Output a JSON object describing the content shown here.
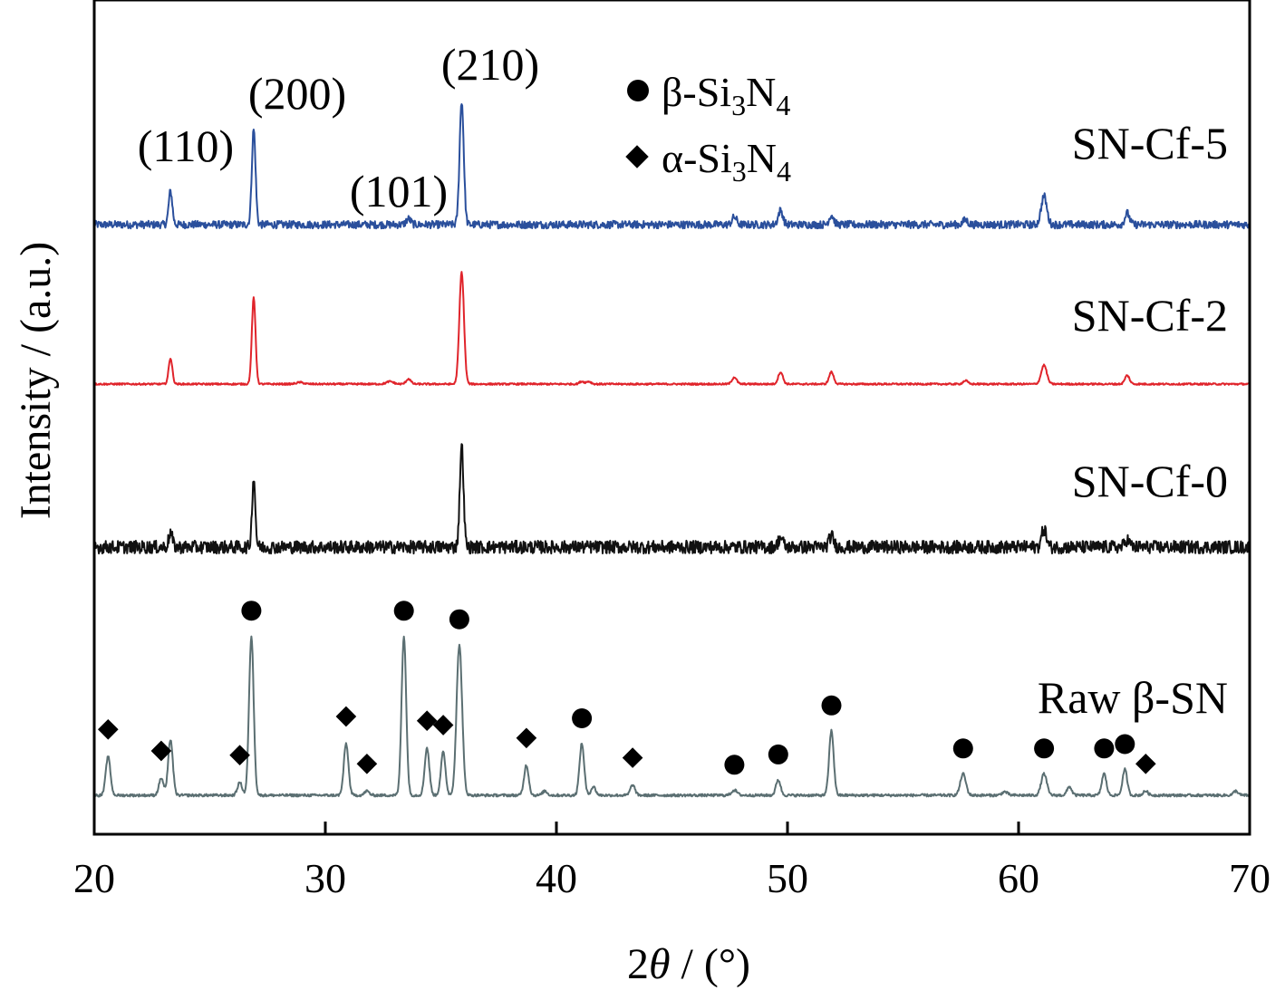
{
  "chart_data": {
    "type": "line",
    "xlabel_prefix": "2",
    "xlabel_symbol": "θ",
    "xlabel_suffix": " / (°)",
    "ylabel": "Intensity / (a.u.)",
    "xlim": [
      20,
      70
    ],
    "x_ticks": [
      "20",
      "30",
      "40",
      "50",
      "60",
      "70"
    ],
    "grid": false,
    "y_ticks_shown": false,
    "series": [
      {
        "name": "SN-Cf-5",
        "color": "#2a4f9c",
        "noise": 0.04,
        "peaks": [
          [
            23.3,
            0.35,
            0.08
          ],
          [
            26.9,
            1.0,
            0.08
          ],
          [
            33.6,
            0.06,
            0.1
          ],
          [
            35.9,
            1.3,
            0.09
          ],
          [
            47.7,
            0.08,
            0.1
          ],
          [
            49.7,
            0.15,
            0.1
          ],
          [
            51.9,
            0.1,
            0.1
          ],
          [
            57.7,
            0.05,
            0.1
          ],
          [
            61.1,
            0.3,
            0.12
          ],
          [
            64.7,
            0.12,
            0.1
          ]
        ]
      },
      {
        "name": "SN-Cf-2",
        "color": "#e0242b",
        "noise": 0.01,
        "peaks": [
          [
            23.3,
            0.3,
            0.08
          ],
          [
            26.9,
            1.0,
            0.08
          ],
          [
            28.9,
            0.02,
            0.15
          ],
          [
            32.8,
            0.03,
            0.15
          ],
          [
            33.6,
            0.06,
            0.1
          ],
          [
            35.9,
            1.3,
            0.1
          ],
          [
            41.1,
            0.03,
            0.1
          ],
          [
            41.4,
            0.03,
            0.1
          ],
          [
            47.7,
            0.08,
            0.1
          ],
          [
            49.7,
            0.14,
            0.1
          ],
          [
            51.9,
            0.14,
            0.1
          ],
          [
            57.7,
            0.04,
            0.1
          ],
          [
            61.1,
            0.22,
            0.12
          ],
          [
            64.7,
            0.1,
            0.1
          ]
        ]
      },
      {
        "name": "SN-Cf-0",
        "color": "#111111",
        "noise": 0.07,
        "peaks": [
          [
            23.3,
            0.15,
            0.08
          ],
          [
            26.9,
            0.75,
            0.07
          ],
          [
            35.9,
            1.1,
            0.08
          ],
          [
            49.7,
            0.1,
            0.1
          ],
          [
            51.9,
            0.12,
            0.1
          ],
          [
            61.1,
            0.2,
            0.1
          ],
          [
            64.7,
            0.08,
            0.1
          ]
        ]
      },
      {
        "name": "Raw β-SN",
        "color": "#5b6f72",
        "noise": 0.015,
        "peaks": [
          [
            20.6,
            0.45,
            0.1
          ],
          [
            22.9,
            0.2,
            0.1
          ],
          [
            23.3,
            0.65,
            0.1
          ],
          [
            26.3,
            0.15,
            0.1
          ],
          [
            26.8,
            1.85,
            0.1
          ],
          [
            30.9,
            0.6,
            0.1
          ],
          [
            31.8,
            0.05,
            0.1
          ],
          [
            33.4,
            1.85,
            0.1
          ],
          [
            34.4,
            0.55,
            0.1
          ],
          [
            35.1,
            0.5,
            0.1
          ],
          [
            35.8,
            1.75,
            0.12
          ],
          [
            38.7,
            0.35,
            0.1
          ],
          [
            39.5,
            0.05,
            0.1
          ],
          [
            41.1,
            0.6,
            0.1
          ],
          [
            41.6,
            0.1,
            0.1
          ],
          [
            43.3,
            0.12,
            0.1
          ],
          [
            47.7,
            0.06,
            0.12
          ],
          [
            49.6,
            0.18,
            0.1
          ],
          [
            51.9,
            0.75,
            0.1
          ],
          [
            57.6,
            0.25,
            0.12
          ],
          [
            59.4,
            0.04,
            0.12
          ],
          [
            61.1,
            0.25,
            0.12
          ],
          [
            62.2,
            0.1,
            0.1
          ],
          [
            63.7,
            0.25,
            0.1
          ],
          [
            64.6,
            0.3,
            0.1
          ],
          [
            65.5,
            0.05,
            0.1
          ],
          [
            69.4,
            0.05,
            0.1
          ]
        ]
      }
    ],
    "hkl_annotations": [
      {
        "text": "(110)",
        "x": 23.3,
        "series": "SN-Cf-5"
      },
      {
        "text": "(200)",
        "x": 26.9,
        "series": "SN-Cf-5"
      },
      {
        "text": "(101)",
        "x": 33.6,
        "series": "SN-Cf-5"
      },
      {
        "text": "(210)",
        "x": 35.9,
        "series": "SN-Cf-5"
      }
    ],
    "phase_markers": {
      "series": "Raw β-SN",
      "beta": [
        26.8,
        33.4,
        35.8,
        41.1,
        47.7,
        49.6,
        51.9,
        57.6,
        61.1,
        63.7,
        64.6
      ],
      "alpha": [
        20.6,
        22.9,
        26.3,
        30.9,
        31.8,
        34.4,
        35.1,
        38.7,
        43.3,
        65.5
      ]
    },
    "legend": {
      "placement": "top-center",
      "entries": [
        {
          "marker": "circle",
          "prefix": "β-Si",
          "sub1": "3",
          "mid": "N",
          "sub2": "4"
        },
        {
          "marker": "diamond",
          "prefix": "α-Si",
          "sub1": "3",
          "mid": "N",
          "sub2": "4"
        }
      ]
    }
  }
}
